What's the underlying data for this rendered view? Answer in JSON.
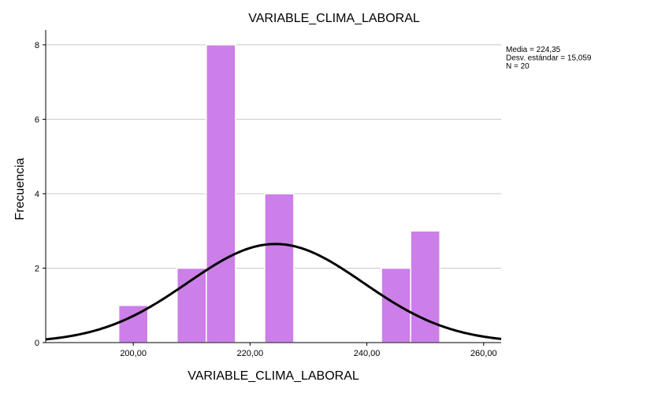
{
  "chart_data": {
    "type": "bar",
    "title": "VARIABLE_CLIMA_LABORAL",
    "xlabel": "VARIABLE_CLIMA_LABORAL",
    "ylabel": "Frecuencia",
    "bar_color": "#cc7fe8",
    "bar_edge_color": "#ffffff",
    "curve_color": "#000000",
    "grid": true,
    "xlim": [
      185,
      263
    ],
    "ylim": [
      0,
      8.4
    ],
    "x_ticks": [
      200,
      220,
      240,
      260
    ],
    "x_tick_labels": [
      "200,00",
      "220,00",
      "240,00",
      "260,00"
    ],
    "y_ticks": [
      0,
      2,
      4,
      6,
      8
    ],
    "y_tick_labels": [
      "0",
      "2",
      "4",
      "6",
      "8"
    ],
    "bins": [
      {
        "start": 197.5,
        "end": 202.5,
        "value": 1
      },
      {
        "start": 207.5,
        "end": 212.5,
        "value": 2
      },
      {
        "start": 212.5,
        "end": 217.5,
        "value": 8
      },
      {
        "start": 222.5,
        "end": 227.5,
        "value": 4
      },
      {
        "start": 242.5,
        "end": 247.5,
        "value": 2
      },
      {
        "start": 247.5,
        "end": 252.5,
        "value": 3
      }
    ],
    "normal_curve": {
      "mean": 224.35,
      "std": 15.059,
      "n": 20,
      "bin_width": 5
    },
    "stats_text": [
      "Media = 224,35",
      "Desv. estándar = 15,059",
      "N = 20"
    ],
    "legend_position": "top-right"
  }
}
